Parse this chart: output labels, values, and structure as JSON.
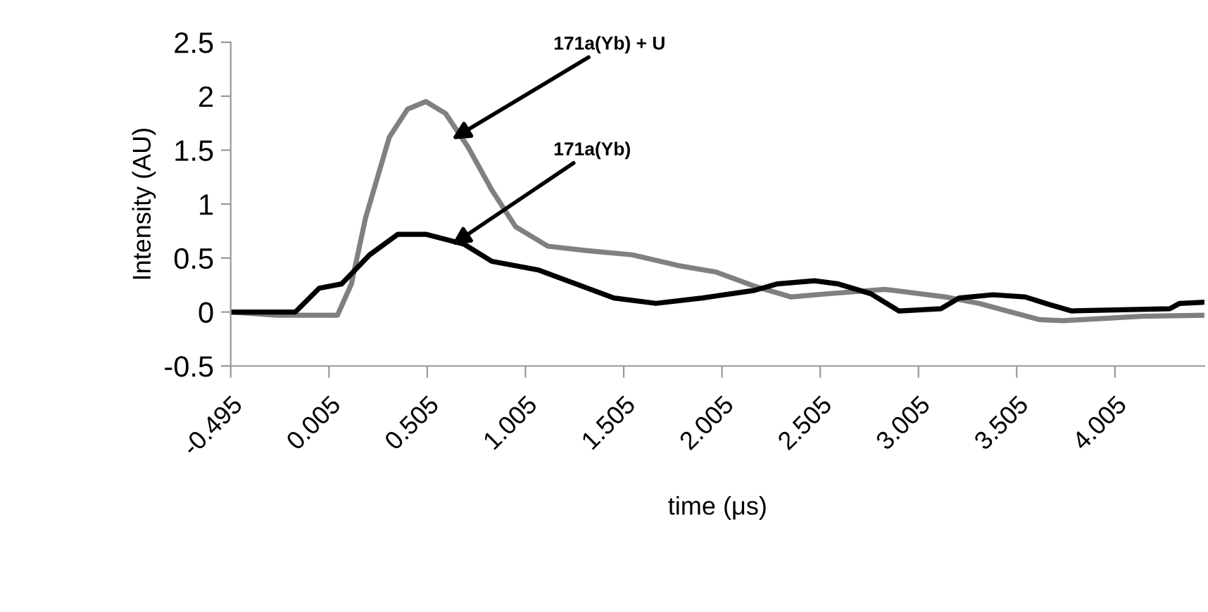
{
  "chart_data": {
    "type": "line",
    "xlabel": "time (μs)",
    "ylabel": "Intensity (AU)",
    "xlim": [
      -0.495,
      4.46
    ],
    "xticks": [
      -0.495,
      0.005,
      0.505,
      1.005,
      1.505,
      2.005,
      2.505,
      3.005,
      3.505,
      4.005
    ],
    "ylim": [
      -0.5,
      2.5
    ],
    "yticks": [
      {
        "value": -0.5,
        "label": "-0.5"
      },
      {
        "value": 0,
        "label": "0"
      },
      {
        "value": 0.5,
        "label": "0.5"
      },
      {
        "value": 1,
        "label": "1"
      },
      {
        "value": 1.5,
        "label": "1.5"
      },
      {
        "value": 2,
        "label": "2"
      },
      {
        "value": 2.5,
        "label": "2.5"
      }
    ],
    "grid": false,
    "marker": "none",
    "line_style": "solid",
    "series": [
      {
        "color": "#808080",
        "x": [
          -0.495,
          -0.259,
          0.048,
          0.119,
          0.191,
          0.312,
          0.405,
          0.498,
          0.598,
          0.712,
          0.834,
          0.955,
          1.119,
          1.312,
          1.548,
          1.784,
          1.976,
          2.169,
          2.355,
          2.548,
          2.834,
          3.141,
          3.312,
          3.619,
          3.741,
          4.141,
          4.455
        ],
        "values": [
          0,
          -0.03,
          -0.03,
          0.26,
          0.87,
          1.62,
          1.88,
          1.95,
          1.84,
          1.53,
          1.13,
          0.79,
          0.61,
          0.57,
          0.53,
          0.43,
          0.37,
          0.24,
          0.14,
          0.17,
          0.21,
          0.14,
          0.08,
          -0.07,
          -0.08,
          -0.04,
          -0.03
        ]
      },
      {
        "color": "#000000",
        "x": [
          -0.495,
          -0.166,
          -0.045,
          0.069,
          0.212,
          0.355,
          0.498,
          0.691,
          0.834,
          1.069,
          1.262,
          1.455,
          1.669,
          1.905,
          2.169,
          2.284,
          2.476,
          2.598,
          2.762,
          2.905,
          3.119,
          3.212,
          3.384,
          3.548,
          3.669,
          3.784,
          4.284,
          4.334,
          4.455
        ],
        "values": [
          0,
          0,
          0.22,
          0.26,
          0.53,
          0.72,
          0.72,
          0.63,
          0.47,
          0.39,
          0.26,
          0.13,
          0.08,
          0.13,
          0.2,
          0.26,
          0.29,
          0.26,
          0.17,
          0.01,
          0.03,
          0.13,
          0.16,
          0.14,
          0.07,
          0.01,
          0.03,
          0.08,
          0.09
        ]
      }
    ],
    "annotations": [
      {
        "text": "171a(Yb) + U",
        "x": 0.63,
        "y": 1.6
      },
      {
        "text": "171a(Yb)",
        "x": 0.63,
        "y": 0.62
      }
    ]
  }
}
